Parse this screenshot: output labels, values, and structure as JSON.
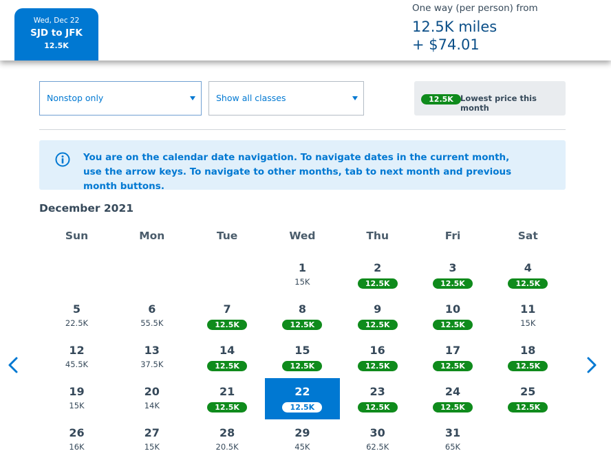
{
  "header": {
    "selected_tab": {
      "date": "Wed, Dec 22",
      "route": "SJD to JFK",
      "price": "12.5K"
    },
    "fare": {
      "label": "One way (per person) from",
      "miles": "12.5K miles",
      "cash": "+ $74.01"
    }
  },
  "filters": {
    "stops": {
      "value": "Nonstop only",
      "icon": "chevron-down-icon"
    },
    "classes": {
      "value": "Show all classes",
      "icon": "chevron-down-icon"
    },
    "legend": {
      "pill": "12.5K",
      "text": "Lowest price this month"
    }
  },
  "info": {
    "icon": "info-icon",
    "message": "You are on the calendar date navigation. To navigate dates in the current month, use the arrow keys. To navigate to other months, tab to next month and previous month buttons."
  },
  "calendar": {
    "month": "December 2021",
    "prev_icon": "chevron-left-icon",
    "next_icon": "chevron-right-icon",
    "weekdays": [
      "Sun",
      "Mon",
      "Tue",
      "Wed",
      "Thu",
      "Fri",
      "Sat"
    ],
    "first_weekday_index": 3,
    "selected_day": 22,
    "days": [
      {
        "day": "1",
        "price": "15K",
        "lowest": false
      },
      {
        "day": "2",
        "price": "12.5K",
        "lowest": true
      },
      {
        "day": "3",
        "price": "12.5K",
        "lowest": true
      },
      {
        "day": "4",
        "price": "12.5K",
        "lowest": true
      },
      {
        "day": "5",
        "price": "22.5K",
        "lowest": false
      },
      {
        "day": "6",
        "price": "55.5K",
        "lowest": false
      },
      {
        "day": "7",
        "price": "12.5K",
        "lowest": true
      },
      {
        "day": "8",
        "price": "12.5K",
        "lowest": true
      },
      {
        "day": "9",
        "price": "12.5K",
        "lowest": true
      },
      {
        "day": "10",
        "price": "12.5K",
        "lowest": true
      },
      {
        "day": "11",
        "price": "15K",
        "lowest": false
      },
      {
        "day": "12",
        "price": "45.5K",
        "lowest": false
      },
      {
        "day": "13",
        "price": "37.5K",
        "lowest": false
      },
      {
        "day": "14",
        "price": "12.5K",
        "lowest": true
      },
      {
        "day": "15",
        "price": "12.5K",
        "lowest": true
      },
      {
        "day": "16",
        "price": "12.5K",
        "lowest": true
      },
      {
        "day": "17",
        "price": "12.5K",
        "lowest": true
      },
      {
        "day": "18",
        "price": "12.5K",
        "lowest": true
      },
      {
        "day": "19",
        "price": "15K",
        "lowest": false
      },
      {
        "day": "20",
        "price": "14K",
        "lowest": false
      },
      {
        "day": "21",
        "price": "12.5K",
        "lowest": true
      },
      {
        "day": "22",
        "price": "12.5K",
        "lowest": true
      },
      {
        "day": "23",
        "price": "12.5K",
        "lowest": true
      },
      {
        "day": "24",
        "price": "12.5K",
        "lowest": true
      },
      {
        "day": "25",
        "price": "12.5K",
        "lowest": true
      },
      {
        "day": "26",
        "price": "16K",
        "lowest": false
      },
      {
        "day": "27",
        "price": "15K",
        "lowest": false
      },
      {
        "day": "28",
        "price": "20.5K",
        "lowest": false
      },
      {
        "day": "29",
        "price": "45K",
        "lowest": false
      },
      {
        "day": "30",
        "price": "62.5K",
        "lowest": false
      },
      {
        "day": "31",
        "price": "65K",
        "lowest": false
      }
    ]
  },
  "colors": {
    "brand_blue": "#0078d2",
    "lowest_price_green": "#0f8b1c",
    "info_background": "#e1f0fb",
    "text_dark": "#36495a"
  }
}
